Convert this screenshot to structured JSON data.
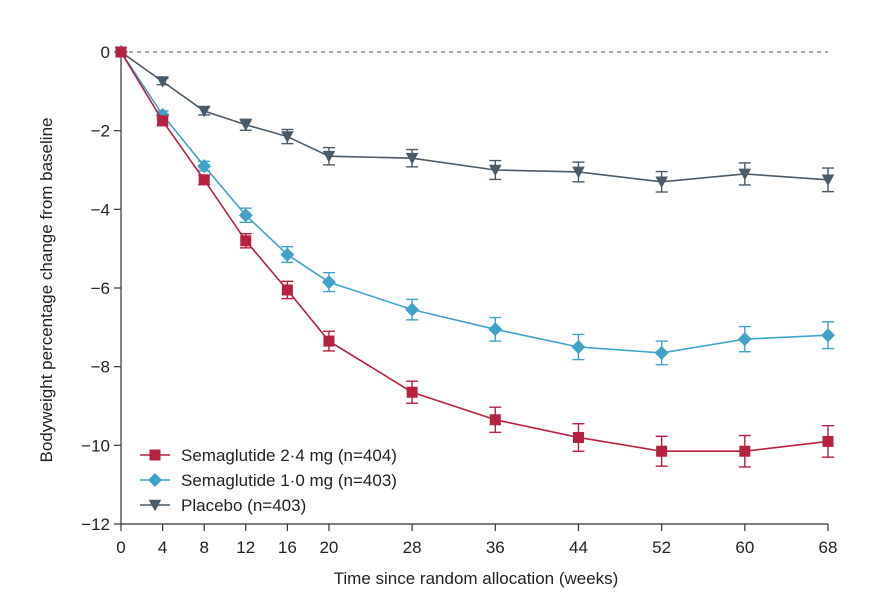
{
  "chart_data": {
    "type": "line",
    "title": "",
    "xlabel": "Time since random allocation (weeks)",
    "ylabel": "Bodyweight percentage change from baseline",
    "x": [
      0,
      4,
      8,
      12,
      16,
      20,
      28,
      36,
      44,
      52,
      60,
      68
    ],
    "xticks": [
      0,
      4,
      8,
      12,
      16,
      20,
      28,
      36,
      44,
      52,
      60,
      68
    ],
    "yticks": [
      0,
      -2,
      -4,
      -6,
      -8,
      -10,
      -12
    ],
    "xlim": [
      0,
      68
    ],
    "ylim": [
      -12,
      0
    ],
    "reference_line": 0,
    "legend_position": "bottom-left",
    "series": [
      {
        "name": "Semaglutide 2·4 mg (n=404)",
        "color": "#b5213f",
        "marker": "square",
        "values": [
          0,
          -1.75,
          -3.25,
          -4.8,
          -6.05,
          -7.35,
          -8.65,
          -9.35,
          -9.8,
          -10.15,
          -10.15,
          -9.9
        ],
        "errors": [
          0,
          0.12,
          0.12,
          0.18,
          0.22,
          0.25,
          0.28,
          0.32,
          0.35,
          0.38,
          0.4,
          0.4
        ]
      },
      {
        "name": "Semaglutide 1·0 mg (n=403)",
        "color": "#3fa3c9",
        "marker": "diamond",
        "values": [
          0,
          -1.6,
          -2.9,
          -4.15,
          -5.15,
          -5.85,
          -6.55,
          -7.05,
          -7.5,
          -7.65,
          -7.3,
          -7.2
        ],
        "errors": [
          0,
          0.1,
          0.12,
          0.18,
          0.2,
          0.24,
          0.26,
          0.3,
          0.32,
          0.3,
          0.32,
          0.34
        ]
      },
      {
        "name": "Placebo (n=403)",
        "color": "#4a5a68",
        "marker": "triangle-down",
        "values": [
          0,
          -0.75,
          -1.5,
          -1.85,
          -2.15,
          -2.65,
          -2.7,
          -3.0,
          -3.05,
          -3.3,
          -3.1,
          -3.25
        ],
        "errors": [
          0,
          0.08,
          0.1,
          0.14,
          0.18,
          0.22,
          0.22,
          0.24,
          0.25,
          0.26,
          0.28,
          0.3
        ]
      }
    ]
  }
}
